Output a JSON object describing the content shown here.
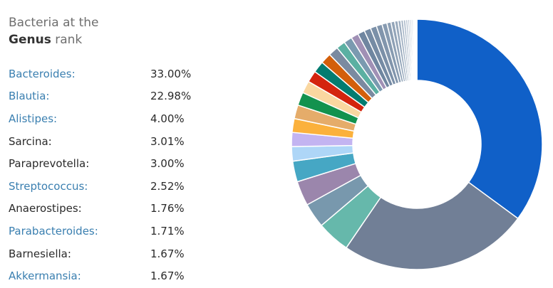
{
  "header": {
    "line1": "Bacteria at the",
    "rank_bold": "Genus",
    "rank_rest": " rank"
  },
  "colors": {
    "link": "#3a7fb0",
    "text": "#2a2a2a"
  },
  "chart_data": {
    "type": "pie",
    "variant": "donut",
    "title": "Bacteria at the Genus rank",
    "categories": [
      "Bacteroides",
      "Blautia",
      "Alistipes",
      "Sarcina",
      "Paraprevotella",
      "Streptococcus",
      "Anaerostipes",
      "Parabacteroides",
      "Barnesiella",
      "Akkermansia"
    ],
    "labels": [
      "Bacteroides:",
      "Blautia:",
      "Alistipes:",
      "Sarcina:",
      "Paraprevotella:",
      "Streptococcus:",
      "Anaerostipes:",
      "Parabacteroides:",
      "Barnesiella:",
      "Akkermansia:"
    ],
    "display_values": [
      "33.00%",
      "22.98%",
      "4.00%",
      "3.01%",
      "3.00%",
      "2.52%",
      "1.76%",
      "1.71%",
      "1.67%",
      "1.67%"
    ],
    "linked": [
      true,
      true,
      true,
      false,
      false,
      true,
      false,
      true,
      false,
      true
    ],
    "values": [
      33.0,
      22.98,
      4.0,
      3.01,
      3.0,
      2.52,
      1.76,
      1.71,
      1.67,
      1.67
    ],
    "unlisted_values": [
      1.6,
      1.5,
      1.4,
      1.4,
      1.3,
      1.2,
      1.1,
      1.0,
      0.9,
      0.85,
      0.8,
      0.75,
      0.7,
      0.6,
      0.5,
      0.45,
      0.4,
      0.35,
      0.3,
      0.28,
      0.25,
      0.22,
      0.2,
      0.18,
      0.15,
      0.13,
      0.12,
      0.1
    ],
    "slice_colors": [
      "#1060c8",
      "#717f96",
      "#66b8ab",
      "#7898ad",
      "#9b86ac",
      "#46a7c4",
      "#aed6f7",
      "#c3b4f1",
      "#fbb13c",
      "#e5ac6a",
      "#13924e",
      "#fad7a0",
      "#d4240e",
      "#037c70",
      "#d35f0b",
      "#7b8aa0",
      "#5bb0a2",
      "#7a9ab0",
      "#a090b5"
    ]
  }
}
